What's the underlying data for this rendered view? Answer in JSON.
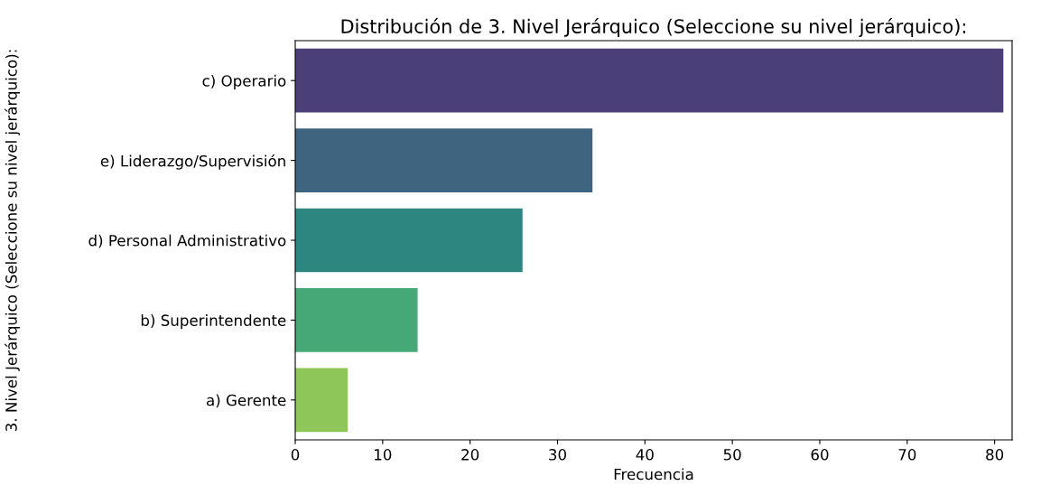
{
  "chart_data": {
    "type": "bar",
    "orientation": "horizontal",
    "title": "Distribución de 3. Nivel Jerárquico (Seleccione su nivel jerárquico):",
    "xlabel": "Frecuencia",
    "ylabel": "3. Nivel Jerárquico (Seleccione su nivel jerárquico):",
    "categories": [
      "c) Operario",
      "e) Liderazgo/Supervisión",
      "d) Personal Administrativo",
      "b) Superintendente",
      "a) Gerente"
    ],
    "values": [
      81,
      34,
      26,
      14,
      6
    ],
    "colors": [
      "#4b3f7a",
      "#3e6480",
      "#2e8680",
      "#47a877",
      "#8fc659"
    ],
    "xlim": [
      0,
      82
    ],
    "xticks": [
      0,
      10,
      20,
      30,
      40,
      50,
      60,
      70,
      80
    ],
    "grid": false,
    "legend": false
  }
}
